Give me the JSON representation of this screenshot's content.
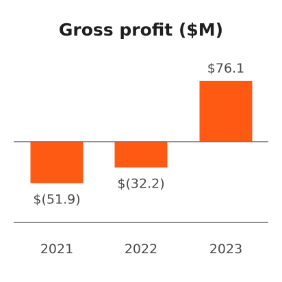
{
  "chart_data": {
    "type": "bar",
    "title": "Gross profit ($M)",
    "categories": [
      "2021",
      "2022",
      "2023"
    ],
    "values": [
      -51.9,
      -32.2,
      76.1
    ],
    "data_labels": [
      "$(51.9)",
      "$(32.2)",
      "$76.1"
    ],
    "xlabel": "",
    "ylabel": "",
    "ylim": [
      -100,
      76.1
    ],
    "grid": false,
    "legend": "none",
    "colors": {
      "bar": "#ff5a14",
      "axis": "#6b6b6b",
      "text": "#4a4a4a",
      "title": "#1f1f1f"
    }
  }
}
